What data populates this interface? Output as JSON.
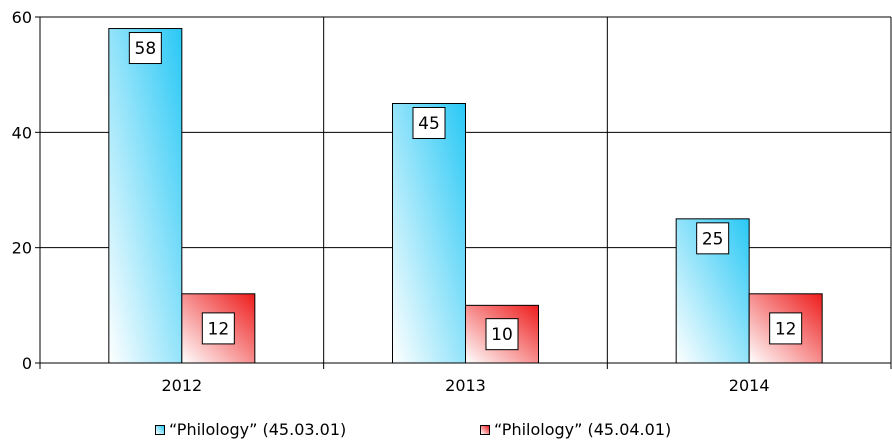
{
  "chart_data": {
    "type": "bar",
    "categories": [
      "2012",
      "2013",
      "2014"
    ],
    "series": [
      {
        "name": "“Philology” (45.03.01)",
        "values": [
          58,
          45,
          25
        ],
        "color": "#29c8f5"
      },
      {
        "name": "“Philology” (45.04.01)",
        "values": [
          12,
          10,
          12
        ],
        "color": "#ee1c1c"
      }
    ],
    "ylim": [
      0,
      60
    ],
    "yticks": [
      0,
      20,
      40,
      60
    ],
    "grid": true,
    "legend_position": "bottom",
    "title": "",
    "xlabel": "",
    "ylabel": ""
  }
}
